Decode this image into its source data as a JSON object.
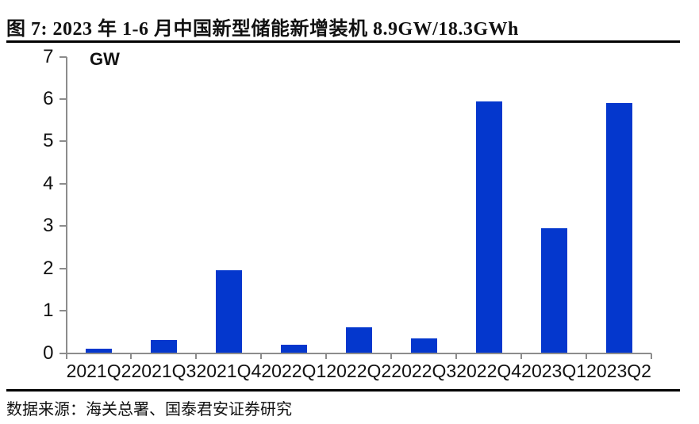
{
  "header": {
    "figure_label": "图 7:",
    "title": "图 7:  2023 年 1-6 月中国新型储能新增装机 8.9GW/18.3GWh"
  },
  "chart_data": {
    "type": "bar",
    "title": "2023 年 1-6 月中国新型储能新增装机 8.9GW/18.3GWh",
    "unit_label": "GW",
    "xlabel": "",
    "ylabel": "GW",
    "categories": [
      "2021Q2",
      "2021Q3",
      "2021Q4",
      "2022Q1",
      "2022Q2",
      "2022Q3",
      "2022Q4",
      "2023Q1",
      "2023Q2"
    ],
    "values": [
      0.1,
      0.3,
      1.95,
      0.2,
      0.6,
      0.35,
      5.95,
      2.95,
      5.9
    ],
    "ylim": [
      0,
      7
    ],
    "yticks": [
      0,
      1,
      2,
      3,
      4,
      5,
      6,
      7
    ],
    "grid": false,
    "legend": "none",
    "bar_color": "#0437CD",
    "axis_color": "#8C8C8C",
    "text_color": "#111111"
  },
  "footer": {
    "source": "数据来源：海关总署、国泰君安证券研究"
  }
}
